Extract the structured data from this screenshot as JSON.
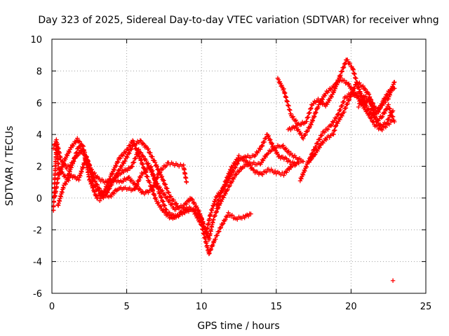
{
  "chart_data": {
    "type": "scatter",
    "title": "Day 323 of 2025, Sidereal Day-to-day VTEC variation (SDTVAR) for receiver whng",
    "xlabel": "GPS time / hours",
    "ylabel": "SDTVAR / TECUs",
    "xlim": [
      0,
      25
    ],
    "ylim": [
      -6,
      10
    ],
    "xticks": [
      0,
      5,
      10,
      15,
      20,
      25
    ],
    "yticks": [
      -6,
      -4,
      -2,
      0,
      2,
      4,
      6,
      8,
      10
    ],
    "marker": "plus",
    "color": "#ff0000",
    "grid": true,
    "traces": [
      [
        [
          0.1,
          -0.8
        ],
        [
          0.3,
          3.3
        ],
        [
          0.5,
          1.5
        ],
        [
          0.9,
          2.5
        ],
        [
          1.3,
          3.2
        ],
        [
          1.7,
          3.7
        ],
        [
          2.1,
          3.2
        ],
        [
          2.5,
          1.2
        ],
        [
          3.0,
          0.0
        ],
        [
          3.5,
          0.4
        ],
        [
          4.0,
          1.5
        ],
        [
          4.5,
          2.5
        ],
        [
          5.0,
          3.0
        ],
        [
          5.4,
          3.6
        ],
        [
          5.9,
          2.5
        ],
        [
          6.5,
          1.0
        ],
        [
          7.0,
          -0.2
        ],
        [
          7.5,
          -0.9
        ],
        [
          8.0,
          -1.3
        ],
        [
          8.5,
          -1.0
        ],
        [
          9.0,
          -0.6
        ],
        [
          9.5,
          -0.7
        ],
        [
          10.0,
          -1.3
        ],
        [
          10.3,
          -2.3
        ],
        [
          10.6,
          -1.0
        ],
        [
          11.0,
          0.1
        ],
        [
          11.5,
          0.6
        ],
        [
          12.0,
          1.5
        ],
        [
          12.5,
          2.4
        ],
        [
          13.0,
          2.6
        ],
        [
          13.5,
          2.6
        ],
        [
          14.0,
          3.2
        ],
        [
          14.4,
          4.0
        ],
        [
          14.8,
          3.2
        ],
        [
          15.2,
          2.6
        ],
        [
          15.6,
          2.5
        ],
        [
          16.0,
          2.2
        ],
        [
          16.5,
          2.2
        ]
      ],
      [
        [
          0.2,
          0.1
        ],
        [
          0.5,
          1.8
        ],
        [
          1.0,
          1.2
        ],
        [
          1.5,
          2.5
        ],
        [
          2.0,
          3.0
        ],
        [
          2.4,
          2.2
        ],
        [
          2.8,
          0.8
        ],
        [
          3.3,
          0.2
        ],
        [
          3.8,
          0.6
        ],
        [
          4.2,
          1.3
        ],
        [
          4.8,
          1.7
        ],
        [
          5.3,
          1.9
        ],
        [
          5.8,
          3.0
        ],
        [
          6.4,
          2.2
        ],
        [
          7.0,
          0.9
        ],
        [
          7.6,
          0.1
        ],
        [
          8.2,
          -0.7
        ],
        [
          8.8,
          -0.5
        ],
        [
          9.3,
          0.0
        ],
        [
          9.8,
          -0.8
        ],
        [
          10.2,
          -1.8
        ],
        [
          10.5,
          -2.6
        ],
        [
          10.8,
          -1.3
        ],
        [
          11.2,
          -0.4
        ],
        [
          11.7,
          0.5
        ],
        [
          12.3,
          1.5
        ],
        [
          12.8,
          2.0
        ],
        [
          13.3,
          2.2
        ],
        [
          13.9,
          2.1
        ],
        [
          14.4,
          2.8
        ],
        [
          14.9,
          3.2
        ],
        [
          15.4,
          3.3
        ],
        [
          15.9,
          2.8
        ],
        [
          16.4,
          2.5
        ],
        [
          16.8,
          2.3
        ]
      ],
      [
        [
          0.4,
          -0.5
        ],
        [
          0.8,
          0.8
        ],
        [
          1.3,
          1.4
        ],
        [
          1.8,
          1.2
        ],
        [
          2.3,
          2.6
        ],
        [
          2.9,
          1.0
        ],
        [
          3.4,
          0.2
        ],
        [
          3.9,
          0.1
        ],
        [
          4.4,
          0.6
        ],
        [
          5.0,
          0.6
        ],
        [
          5.5,
          0.5
        ],
        [
          6.0,
          1.5
        ],
        [
          6.6,
          2.0
        ],
        [
          7.1,
          0.5
        ],
        [
          7.7,
          -0.9
        ],
        [
          8.3,
          -1.2
        ],
        [
          8.8,
          -0.9
        ],
        [
          9.4,
          -0.7
        ],
        [
          10.0,
          -1.7
        ],
        [
          10.5,
          -3.5
        ],
        [
          10.9,
          -2.6
        ],
        [
          11.3,
          -1.8
        ],
        [
          11.8,
          -1.0
        ],
        [
          12.3,
          -1.3
        ],
        [
          12.8,
          -1.2
        ],
        [
          13.3,
          -1.0
        ]
      ],
      [
        [
          4.6,
          1.0
        ],
        [
          5.1,
          1.3
        ],
        [
          5.6,
          0.8
        ],
        [
          6.1,
          0.3
        ],
        [
          6.7,
          0.5
        ],
        [
          7.2,
          1.7
        ],
        [
          7.8,
          2.2
        ],
        [
          8.3,
          2.1
        ],
        [
          8.8,
          2.0
        ],
        [
          9.0,
          1.0
        ]
      ],
      [
        [
          11.0,
          -0.5
        ],
        [
          11.5,
          0.8
        ],
        [
          12.0,
          1.9
        ],
        [
          12.5,
          2.6
        ],
        [
          13.0,
          2.3
        ],
        [
          13.5,
          1.7
        ],
        [
          14.0,
          1.5
        ],
        [
          14.5,
          1.8
        ],
        [
          15.0,
          1.6
        ],
        [
          15.5,
          1.5
        ],
        [
          16.0,
          2.0
        ],
        [
          16.5,
          2.2
        ]
      ],
      [
        [
          15.1,
          7.5
        ],
        [
          15.5,
          6.8
        ],
        [
          16.0,
          5.2
        ],
        [
          16.5,
          4.6
        ],
        [
          17.0,
          4.8
        ],
        [
          17.4,
          5.9
        ],
        [
          17.8,
          6.2
        ],
        [
          18.3,
          5.8
        ],
        [
          18.8,
          6.6
        ],
        [
          19.3,
          7.8
        ],
        [
          19.7,
          8.7
        ],
        [
          20.1,
          8.2
        ],
        [
          20.5,
          6.9
        ],
        [
          20.9,
          6.0
        ],
        [
          21.3,
          6.2
        ],
        [
          21.7,
          5.5
        ],
        [
          22.1,
          5.9
        ],
        [
          22.5,
          6.3
        ],
        [
          22.9,
          7.3
        ]
      ],
      [
        [
          15.8,
          4.3
        ],
        [
          16.3,
          4.5
        ],
        [
          16.8,
          3.8
        ],
        [
          17.3,
          4.6
        ],
        [
          17.8,
          5.8
        ],
        [
          18.3,
          6.6
        ],
        [
          18.8,
          7.0
        ],
        [
          19.3,
          7.5
        ],
        [
          19.8,
          7.2
        ],
        [
          20.2,
          6.6
        ],
        [
          20.6,
          6.5
        ],
        [
          21.0,
          5.8
        ],
        [
          21.4,
          5.2
        ],
        [
          21.8,
          5.4
        ],
        [
          22.2,
          6.2
        ],
        [
          22.6,
          6.8
        ],
        [
          22.9,
          6.9
        ]
      ],
      [
        [
          16.6,
          1.1
        ],
        [
          17.1,
          2.2
        ],
        [
          17.6,
          3.2
        ],
        [
          18.1,
          4.1
        ],
        [
          18.6,
          4.5
        ],
        [
          19.1,
          5.2
        ],
        [
          19.6,
          6.3
        ],
        [
          20.0,
          6.6
        ],
        [
          20.4,
          6.4
        ],
        [
          20.8,
          5.8
        ],
        [
          21.2,
          5.2
        ],
        [
          21.6,
          4.6
        ],
        [
          22.0,
          4.3
        ],
        [
          22.4,
          4.6
        ],
        [
          22.8,
          4.9
        ]
      ],
      [
        [
          17.2,
          2.3
        ],
        [
          17.6,
          2.8
        ],
        [
          18.0,
          3.4
        ],
        [
          18.4,
          3.8
        ],
        [
          18.8,
          4.0
        ],
        [
          19.0,
          4.6
        ],
        [
          19.5,
          5.4
        ],
        [
          20.0,
          6.5
        ],
        [
          20.4,
          7.3
        ],
        [
          20.8,
          7.0
        ],
        [
          21.2,
          6.5
        ],
        [
          21.6,
          5.0
        ],
        [
          22.0,
          4.5
        ],
        [
          22.4,
          4.8
        ],
        [
          22.8,
          5.5
        ]
      ],
      [
        [
          20.5,
          5.8
        ],
        [
          20.9,
          6.4
        ],
        [
          21.3,
          6.0
        ],
        [
          21.7,
          4.8
        ],
        [
          22.1,
          5.2
        ],
        [
          22.5,
          5.8
        ],
        [
          22.9,
          4.8
        ]
      ],
      [
        [
          0.1,
          3.2
        ],
        [
          0.3,
          3.6
        ],
        [
          0.6,
          2.4
        ],
        [
          1.0,
          1.9
        ],
        [
          1.4,
          2.2
        ],
        [
          1.8,
          3.3
        ],
        [
          2.2,
          2.8
        ],
        [
          2.6,
          1.8
        ],
        [
          3.1,
          1.2
        ],
        [
          3.6,
          1.0
        ],
        [
          4.1,
          1.2
        ],
        [
          4.5,
          1.0
        ]
      ],
      [
        [
          3.2,
          -0.1
        ],
        [
          3.6,
          0.2
        ],
        [
          4.0,
          0.9
        ],
        [
          4.4,
          1.6
        ],
        [
          4.9,
          2.4
        ],
        [
          5.4,
          3.3
        ],
        [
          5.9,
          3.6
        ],
        [
          6.4,
          3.1
        ],
        [
          6.9,
          2.2
        ],
        [
          7.4,
          1.2
        ],
        [
          7.9,
          0.1
        ],
        [
          8.4,
          -0.5
        ]
      ],
      [
        [
          22.8,
          -5.2
        ]
      ]
    ]
  }
}
